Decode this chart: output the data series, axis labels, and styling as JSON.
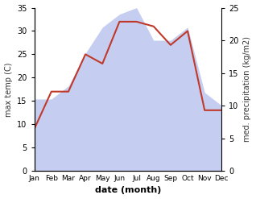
{
  "months": [
    "Jan",
    "Feb",
    "Mar",
    "Apr",
    "May",
    "Jun",
    "Jul",
    "Aug",
    "Sep",
    "Oct",
    "Nov",
    "Dec"
  ],
  "temperature": [
    9,
    17,
    17,
    25,
    23,
    32,
    32,
    31,
    27,
    30,
    13,
    13
  ],
  "precipitation": [
    11,
    11,
    13,
    18,
    22,
    24,
    25,
    20,
    20,
    22,
    12,
    10
  ],
  "temp_color": "#c0392b",
  "precip_fill_color": "#c5cef0",
  "ylabel_left": "max temp (C)",
  "ylabel_right": "med. precipitation (kg/m2)",
  "xlabel": "date (month)",
  "ylim_left": [
    0,
    35
  ],
  "ylim_right": [
    0,
    25
  ],
  "fig_width": 3.18,
  "fig_height": 2.47,
  "dpi": 100
}
